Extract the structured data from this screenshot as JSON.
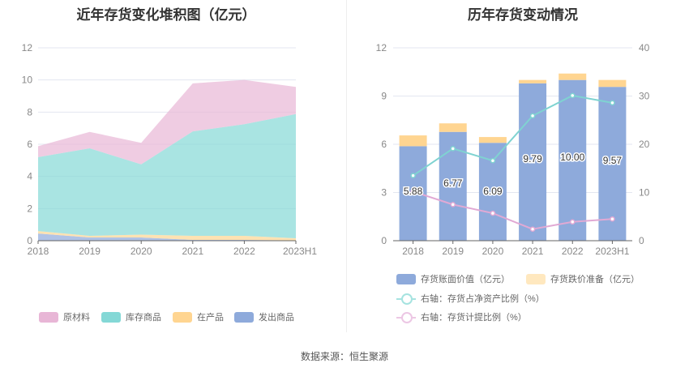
{
  "source": "数据来源：恒生聚源",
  "chart_data": [
    {
      "type": "area",
      "title": "近年存货变化堆积图（亿元）",
      "categories": [
        "2018",
        "2019",
        "2020",
        "2021",
        "2022",
        "2023H1"
      ],
      "ylim": [
        0,
        12
      ],
      "yticks": [
        0,
        2,
        4,
        6,
        8,
        10,
        12
      ],
      "legend_position": "bottom",
      "series": [
        {
          "name": "发出商品",
          "color": "#8eaadb",
          "values": [
            0.45,
            0.2,
            0.2,
            0.05,
            0.05,
            0.02
          ]
        },
        {
          "name": "在产品",
          "color": "#ffd591",
          "values": [
            0.15,
            0.1,
            0.18,
            0.25,
            0.25,
            0.13
          ]
        },
        {
          "name": "库存商品",
          "color": "#84d8d6",
          "values": [
            4.6,
            5.45,
            4.37,
            6.5,
            6.95,
            7.73
          ]
        },
        {
          "name": "原材料",
          "color": "#e8b6d6",
          "values": [
            0.68,
            1.02,
            1.34,
            2.99,
            2.75,
            1.69
          ]
        }
      ]
    },
    {
      "type": "bar",
      "title": "历年存货变动情况",
      "categories": [
        "2018",
        "2019",
        "2020",
        "2021",
        "2022",
        "2023H1"
      ],
      "ylim": [
        0,
        12
      ],
      "yticks": [
        0,
        3,
        6,
        9,
        12
      ],
      "y2lim": [
        0,
        40
      ],
      "y2ticks": [
        0,
        10,
        20,
        30,
        40
      ],
      "legend_position": "bottom",
      "series": [
        {
          "name": "存货账面价值（亿元）",
          "color": "#8eaadb",
          "values": [
            5.88,
            6.77,
            6.09,
            9.79,
            10.0,
            9.57
          ],
          "labels": [
            "5.88",
            "6.77",
            "6.09",
            "9.79",
            "10.00",
            "9.57"
          ]
        },
        {
          "name": "存货跌价准备（亿元）",
          "color": "#ffd591",
          "values": [
            0.67,
            0.53,
            0.36,
            0.21,
            0.4,
            0.43
          ]
        },
        {
          "name": "右轴：存货占净资产比例（%）",
          "color": "#7fd3d1",
          "axis": "right",
          "values": [
            13.5,
            19.1,
            16.6,
            25.9,
            30.1,
            28.6
          ]
        },
        {
          "name": "右轴：存货计提比例（%）",
          "color": "#e1a9d4",
          "axis": "right",
          "values": [
            10.2,
            7.5,
            5.7,
            2.4,
            3.9,
            4.5
          ]
        }
      ]
    }
  ]
}
